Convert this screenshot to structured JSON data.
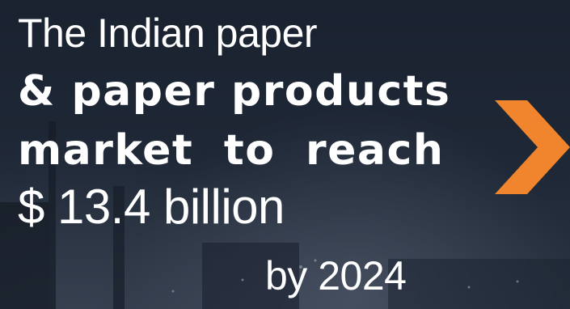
{
  "headline": {
    "line1": "The Indian paper",
    "line2": "& paper products",
    "line3": "market to reach",
    "line4": "$ 13.4 billion",
    "line5": "by 2024"
  },
  "colors": {
    "background": "#1b2432",
    "text": "#ffffff",
    "accent": "#f0852d"
  },
  "icons": {
    "accent_shape": "chevron-right-icon"
  }
}
